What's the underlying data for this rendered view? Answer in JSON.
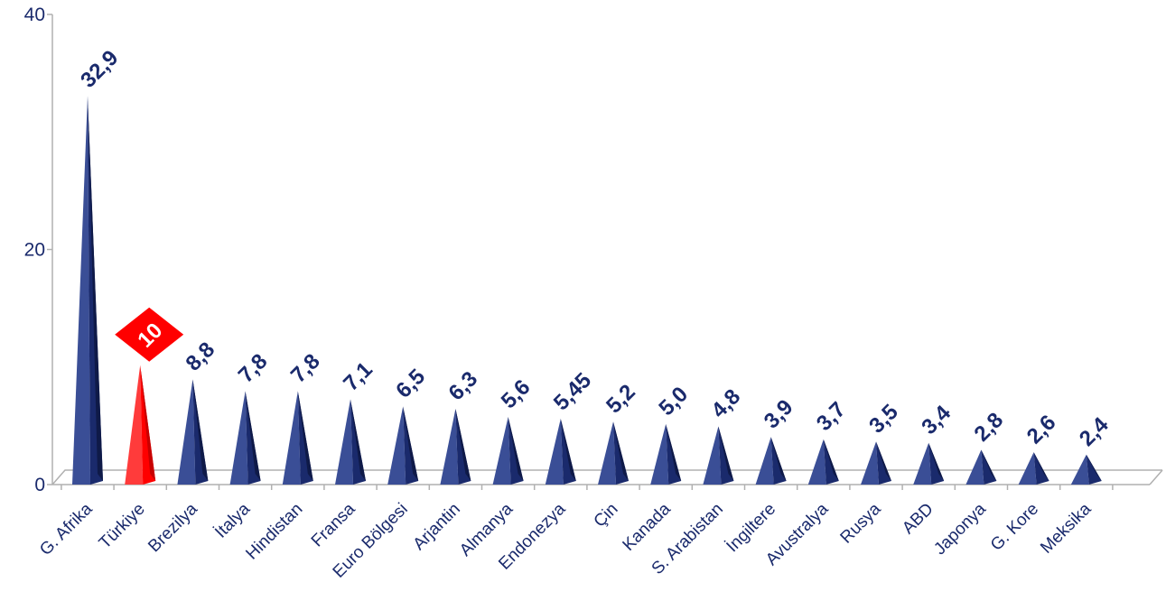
{
  "chart_data": {
    "type": "bar",
    "title": "",
    "xlabel": "",
    "ylabel": "",
    "ylim": [
      0,
      40
    ],
    "yticks": [
      "0",
      "20",
      "40"
    ],
    "grid": false,
    "categories": [
      "G. Afrika",
      "Türkiye",
      "Brezilya",
      "İtalya",
      "Hindistan",
      "Fransa",
      "Euro Bölgesi",
      "Arjantin",
      "Almanya",
      "Endonezya",
      "Çin",
      "Kanada",
      "S. Arabistan",
      "İngiltere",
      "Avustralya",
      "Rusya",
      "ABD",
      "Japonya",
      "G. Kore",
      "Meksika"
    ],
    "values": [
      32.9,
      10,
      8.8,
      7.8,
      7.8,
      7.1,
      6.5,
      6.3,
      5.6,
      5.45,
      5.2,
      5.0,
      4.8,
      3.9,
      3.7,
      3.5,
      3.4,
      2.8,
      2.6,
      2.4
    ],
    "value_labels": [
      "32,9",
      "10",
      "8,8",
      "7,8",
      "7,8",
      "7,1",
      "6,5",
      "6,3",
      "5,6",
      "5,45",
      "5,2",
      "5,0",
      "4,8",
      "3,9",
      "3,7",
      "3,5",
      "3,4",
      "2,8",
      "2,6",
      "2,4"
    ],
    "highlight": "Türkiye",
    "colors": {
      "bar": "#1a2a6c",
      "bar_light": "#3a4e96",
      "bar_dark": "#0f1a48",
      "highlight": "#ff0000",
      "highlight_light": "#ff3b3b",
      "highlight_dark": "#c80000",
      "axis": "#b0b0b0",
      "text": "#1a2a6c"
    }
  }
}
